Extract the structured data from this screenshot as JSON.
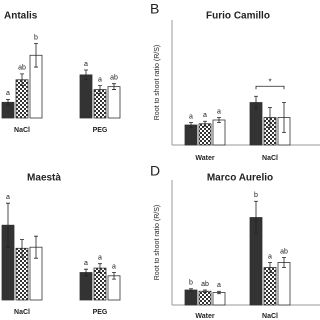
{
  "chart_data": [
    {
      "type": "bar",
      "title": "Antalis",
      "categories": [
        "NaCl",
        "PEG"
      ],
      "ylim": [
        0,
        1
      ],
      "series": [
        {
          "color": "#333333",
          "values": [
            0.16,
            0.44
          ],
          "errors": [
            0.03,
            0.05
          ],
          "letters": [
            "a",
            "a"
          ]
        },
        {
          "color": "#333333",
          "pattern": "checker",
          "values": [
            0.39,
            0.29
          ],
          "errors": [
            0.06,
            0.04
          ],
          "letters": [
            "ab",
            "a"
          ]
        },
        {
          "color": "#ffffff",
          "values": [
            0.64,
            0.32
          ],
          "errors": [
            0.12,
            0.03
          ],
          "letters": [
            "b",
            "ab"
          ]
        }
      ]
    },
    {
      "type": "bar",
      "panel_label": "B",
      "title": "Furio Camillo",
      "y_label": "Root to shoot ratio (R/S)",
      "categories": [
        "Water",
        "NaCl"
      ],
      "ylim": [
        0,
        1
      ],
      "annotation": "*",
      "series": [
        {
          "color": "#333333",
          "values": [
            0.16,
            0.34
          ],
          "errors": [
            0.02,
            0.05
          ],
          "letters": [
            "a",
            null
          ]
        },
        {
          "color": "#333333",
          "pattern": "checker",
          "values": [
            0.17,
            0.22
          ],
          "errors": [
            0.02,
            0.08
          ],
          "letters": [
            "a",
            null
          ]
        },
        {
          "color": "#ffffff",
          "values": [
            0.2,
            0.22
          ],
          "errors": [
            0.02,
            0.12
          ],
          "letters": [
            "a",
            null
          ]
        }
      ]
    },
    {
      "type": "bar",
      "title": "Maestà",
      "categories": [
        "NaCl",
        "PEG"
      ],
      "ylim": [
        0,
        1
      ],
      "series": [
        {
          "color": "#333333",
          "values": [
            0.68,
            0.25
          ],
          "errors": [
            0.2,
            0.03
          ],
          "letters": [
            "a",
            "a"
          ]
        },
        {
          "color": "#333333",
          "pattern": "checker",
          "values": [
            0.47,
            0.29
          ],
          "errors": [
            0.08,
            0.04
          ],
          "letters": [
            null,
            "a"
          ]
        },
        {
          "color": "#ffffff",
          "values": [
            0.48,
            0.22
          ],
          "errors": [
            0.1,
            0.03
          ],
          "letters": [
            null,
            "a"
          ]
        }
      ]
    },
    {
      "type": "bar",
      "panel_label": "D",
      "title": "Marco Aurelio",
      "y_label": "Root to shoot ratio (R/S)",
      "categories": [
        "Water",
        "NaCl"
      ],
      "ylim": [
        0,
        1
      ],
      "series": [
        {
          "color": "#333333",
          "values": [
            0.12,
            0.7
          ],
          "errors": [
            0.01,
            0.13
          ],
          "letters": [
            "b",
            "b"
          ]
        },
        {
          "color": "#333333",
          "pattern": "checker",
          "values": [
            0.11,
            0.3
          ],
          "errors": [
            0.01,
            0.04
          ],
          "letters": [
            "ab",
            "a"
          ]
        },
        {
          "color": "#ffffff",
          "values": [
            0.1,
            0.34
          ],
          "errors": [
            0.01,
            0.04
          ],
          "letters": [
            "a",
            "ab"
          ]
        }
      ]
    }
  ]
}
